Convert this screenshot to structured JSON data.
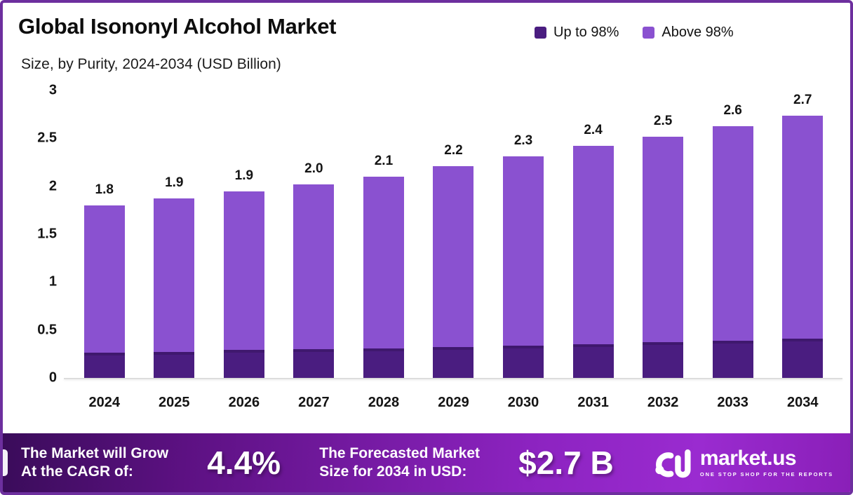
{
  "header": {
    "title": "Global Isononyl Alcohol Market",
    "subtitle": "Size, by Purity, 2024-2034 (USD Billion)"
  },
  "chart_data": {
    "type": "bar",
    "stacked": true,
    "title": "Global Isononyl Alcohol Market",
    "subtitle": "Size, by Purity, 2024-2034 (USD Billion)",
    "unit": "USD Billion",
    "categories": [
      "2024",
      "2025",
      "2026",
      "2027",
      "2028",
      "2029",
      "2030",
      "2031",
      "2032",
      "2033",
      "2034"
    ],
    "series": [
      {
        "name": "Up to 98%",
        "color": "#4a1d80",
        "values": [
          0.26,
          0.27,
          0.29,
          0.3,
          0.31,
          0.32,
          0.34,
          0.35,
          0.37,
          0.39,
          0.41
        ]
      },
      {
        "name": "Above 98%",
        "color": "#8a51d0",
        "values": [
          1.54,
          1.6,
          1.66,
          1.72,
          1.79,
          1.89,
          1.97,
          2.07,
          2.15,
          2.24,
          2.33
        ]
      }
    ],
    "total_labels": [
      "1.8",
      "1.9",
      "1.9",
      "2.0",
      "2.1",
      "2.2",
      "2.3",
      "2.4",
      "2.5",
      "2.6",
      "2.7"
    ],
    "ylim": [
      0,
      3
    ],
    "y_ticks": [
      {
        "label": "0",
        "value": 0
      },
      {
        "label": "0.5",
        "value": 0.5
      },
      {
        "label": "1",
        "value": 1
      },
      {
        "label": "1.5",
        "value": 1.5
      },
      {
        "label": "2",
        "value": 2
      },
      {
        "label": "2.5",
        "value": 2.5
      },
      {
        "label": "3",
        "value": 3
      }
    ],
    "grid": false,
    "legend_position": "top-right"
  },
  "footer": {
    "left_line1": "The Market will Grow",
    "left_line2": "At the CAGR of:",
    "cagr": "4.4%",
    "right_line1": "The Forecasted Market",
    "right_line2": "Size for 2034 in USD:",
    "forecast": "$2.7 B",
    "brand": "market.us",
    "tagline": "ONE STOP SHOP FOR THE REPORTS"
  },
  "colors": {
    "border": "#6d2f9e",
    "bar_dark": "#4a1d80",
    "bar_light": "#8a51d0",
    "footer_gradient_start": "#3a0c5a",
    "footer_gradient_end": "#8a1fb8"
  }
}
